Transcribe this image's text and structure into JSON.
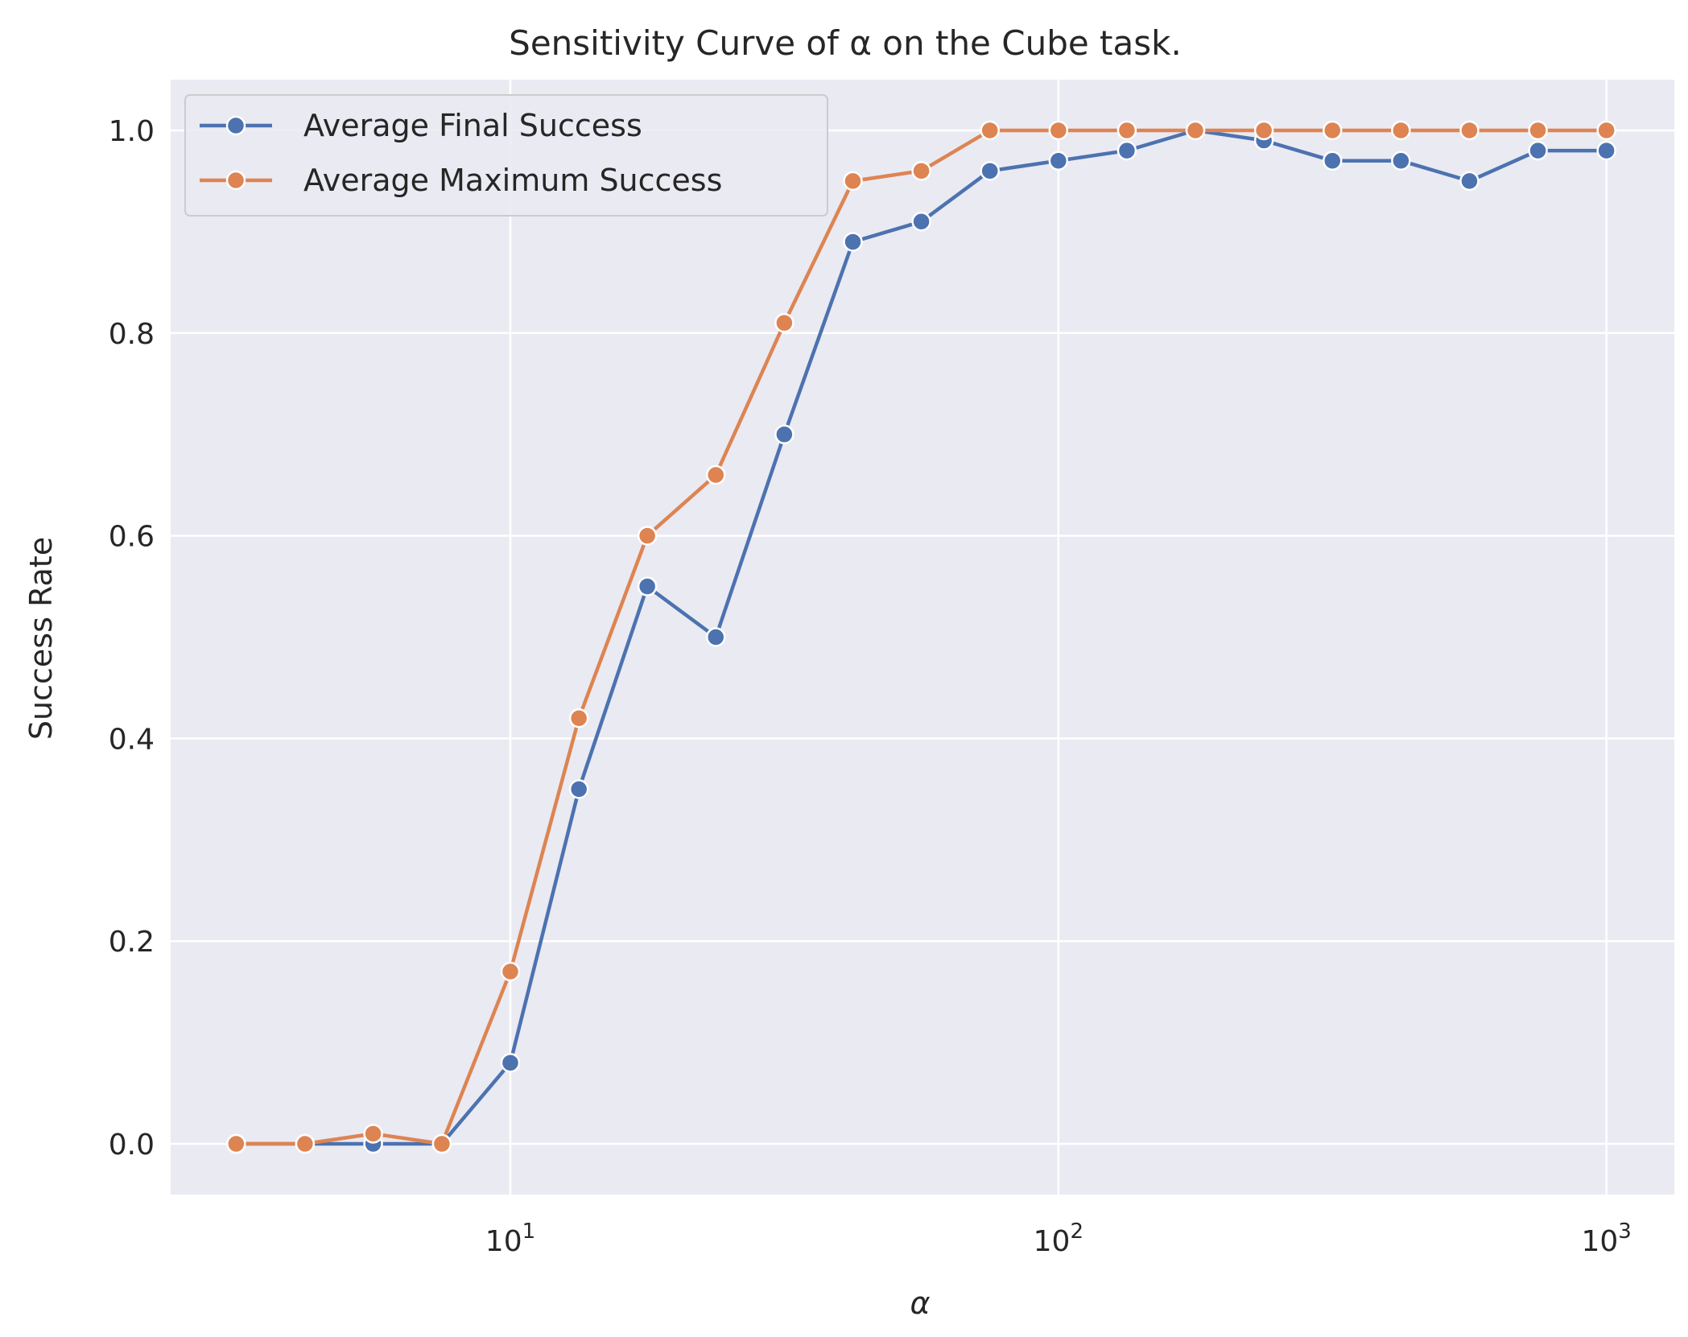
{
  "chart_data": {
    "type": "line",
    "title": "Sensitivity Curve of α on the Cube task.",
    "xlabel": "α",
    "ylabel": "Success Rate",
    "xscale": "log",
    "xlim": [
      2.4,
      1330
    ],
    "ylim": [
      -0.05,
      1.05
    ],
    "xticks": [
      {
        "value": 10,
        "base": "10",
        "exp": "1"
      },
      {
        "value": 100,
        "base": "10",
        "exp": "2"
      },
      {
        "value": 1000,
        "base": "10",
        "exp": "3"
      }
    ],
    "yticks": [
      "0.0",
      "0.2",
      "0.4",
      "0.6",
      "0.8",
      "1.0"
    ],
    "ytick_values": [
      0,
      0.2,
      0.4,
      0.6,
      0.8,
      1.0
    ],
    "grid": true,
    "legend_position": "top-left",
    "x": [
      3.16,
      4.22,
      5.62,
      7.5,
      10.0,
      13.34,
      17.78,
      23.71,
      31.62,
      42.17,
      56.23,
      74.99,
      100.0,
      133.35,
      177.83,
      237.14,
      316.23,
      421.7,
      562.34,
      749.89,
      1000.0
    ],
    "series": [
      {
        "name": "Average Final Success",
        "color": "#4c72b0",
        "values": [
          0.0,
          0.0,
          0.0,
          0.0,
          0.08,
          0.35,
          0.55,
          0.5,
          0.7,
          0.89,
          0.91,
          0.96,
          0.97,
          0.98,
          1.0,
          0.99,
          0.97,
          0.97,
          0.95,
          0.98,
          0.98
        ]
      },
      {
        "name": "Average Maximum Success",
        "color": "#dd8452",
        "values": [
          0.0,
          0.0,
          0.01,
          0.0,
          0.17,
          0.42,
          0.6,
          0.66,
          0.81,
          0.95,
          0.96,
          1.0,
          1.0,
          1.0,
          1.0,
          1.0,
          1.0,
          1.0,
          1.0,
          1.0,
          1.0
        ]
      }
    ],
    "plot_background": "#eaeaf2",
    "grid_color": "#ffffff"
  }
}
